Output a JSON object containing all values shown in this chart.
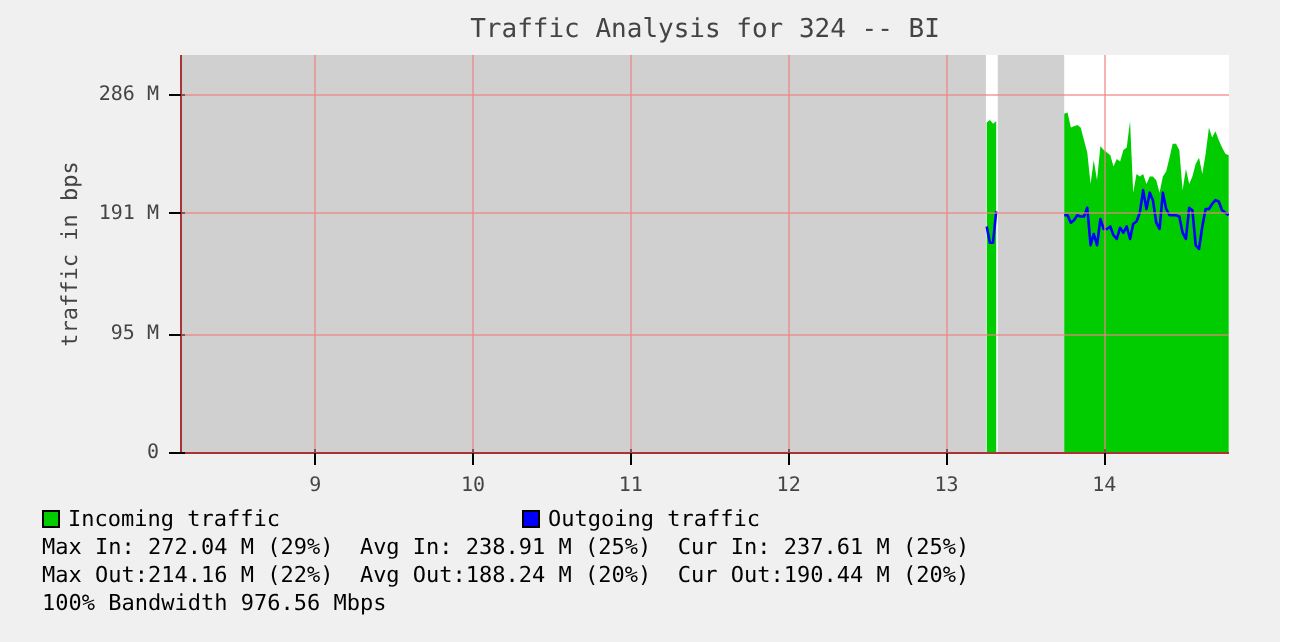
{
  "chart_data": {
    "type": "area",
    "title": "Traffic Analysis for 324 -- BI",
    "ylabel": "traffic in bps",
    "xlim": [
      8.15,
      14.79
    ],
    "xticks": [
      9,
      10,
      11,
      12,
      13,
      14
    ],
    "ylim": [
      0,
      318
    ],
    "yticks": [
      {
        "value": 0,
        "label": "0"
      },
      {
        "value": 95,
        "label": "95 M"
      },
      {
        "value": 191,
        "label": "191 M"
      },
      {
        "value": 286,
        "label": "286 M"
      }
    ],
    "grid": true,
    "legend": "bottom",
    "bands": [
      {
        "axis": "x",
        "from": 8.15,
        "to": 13.25,
        "color": "#d0d0d0"
      },
      {
        "axis": "x",
        "from": 13.325,
        "to": 13.746,
        "color": "#d0d0d0"
      }
    ],
    "series": [
      {
        "name": "Incoming traffic",
        "color": "#00cc00",
        "x": [
          13.255,
          13.275,
          13.295,
          13.315,
          13.325,
          13.746,
          13.767,
          13.788,
          13.808,
          13.829,
          13.85,
          13.871,
          13.892,
          13.913,
          13.933,
          13.954,
          13.975,
          13.996,
          14.017,
          14.038,
          14.058,
          14.079,
          14.1,
          14.121,
          14.142,
          14.163,
          14.183,
          14.204,
          14.225,
          14.246,
          14.267,
          14.288,
          14.308,
          14.329,
          14.35,
          14.371,
          14.392,
          14.413,
          14.433,
          14.454,
          14.475,
          14.496,
          14.517,
          14.538,
          14.558,
          14.579,
          14.6,
          14.621,
          14.642,
          14.663,
          14.683,
          14.704,
          14.725,
          14.746,
          14.767,
          14.788
        ],
        "values": [
          264,
          266,
          263,
          265,
          null,
          271,
          272,
          260,
          261,
          262,
          260,
          250,
          240,
          215,
          234,
          218,
          245,
          242,
          240,
          238,
          229,
          235,
          233,
          242,
          244,
          265,
          208,
          223,
          221,
          223,
          215,
          221,
          221,
          218,
          208,
          221,
          225,
          236,
          247,
          247,
          242,
          210,
          227,
          215,
          221,
          231,
          236,
          223,
          239,
          260,
          252,
          257,
          250,
          244,
          239,
          238
        ]
      },
      {
        "name": "Outgoing traffic",
        "color": "#0000ff",
        "type": "line",
        "x": [
          13.255,
          13.275,
          13.295,
          13.315,
          13.325,
          13.746,
          13.767,
          13.788,
          13.808,
          13.829,
          13.85,
          13.871,
          13.892,
          13.913,
          13.933,
          13.954,
          13.975,
          13.996,
          14.017,
          14.038,
          14.058,
          14.079,
          14.1,
          14.121,
          14.142,
          14.163,
          14.183,
          14.204,
          14.225,
          14.246,
          14.267,
          14.288,
          14.308,
          14.329,
          14.35,
          14.371,
          14.392,
          14.413,
          14.433,
          14.454,
          14.475,
          14.496,
          14.517,
          14.538,
          14.558,
          14.579,
          14.6,
          14.621,
          14.642,
          14.663,
          14.683,
          14.704,
          14.725,
          14.746,
          14.767,
          14.788
        ],
        "values": [
          181,
          168,
          168,
          193,
          null,
          190,
          190,
          184,
          186,
          190,
          189,
          189,
          196,
          166,
          175,
          166,
          187,
          179,
          179,
          181,
          174,
          171,
          180,
          176,
          181,
          171,
          183,
          185,
          192,
          210,
          195,
          208,
          202,
          184,
          179,
          208,
          195,
          190,
          190,
          190,
          189,
          176,
          171,
          196,
          194,
          166,
          163,
          181,
          195,
          195,
          199,
          202,
          201,
          194,
          192,
          190
        ]
      }
    ],
    "annotations": [
      "Max In: 272.04 M (29%)  Avg In: 238.91 M (25%)  Cur In: 237.61 M (25%)",
      "Max Out:214.16 M (22%)  Avg Out:188.24 M (20%)  Cur Out:190.44 M (20%)",
      "100% Bandwidth 976.56 Mbps"
    ]
  }
}
